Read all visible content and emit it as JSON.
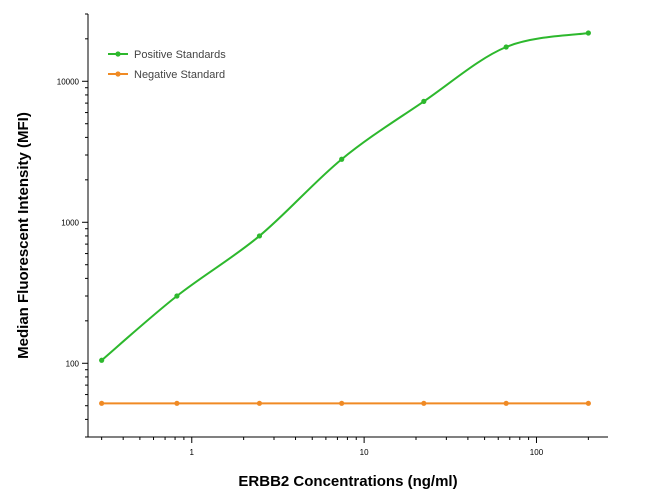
{
  "chart_data": {
    "type": "line",
    "title": "",
    "xlabel": "ERBB2 Concentrations (ng/ml)",
    "ylabel": "Median  Fluorescent Intensity  (MFI)",
    "x_scale": "log",
    "y_scale": "log",
    "xlim": [
      0.25,
      260
    ],
    "ylim": [
      30,
      30000
    ],
    "x_ticks": [
      {
        "value": 1,
        "label": "1"
      },
      {
        "value": 10,
        "label": "10"
      },
      {
        "value": 100,
        "label": "100"
      }
    ],
    "y_ticks": [
      {
        "value": 100,
        "label": "100"
      },
      {
        "value": 1000,
        "label": "1000"
      },
      {
        "value": 10000,
        "label": "10000"
      }
    ],
    "grid": false,
    "legend_position": "top-left",
    "series": [
      {
        "name": "Positive Standards",
        "color": "#2db82d",
        "x": [
          0.3,
          0.82,
          2.47,
          7.41,
          22.2,
          66.7,
          200
        ],
        "y": [
          105,
          300,
          800,
          2800,
          7200,
          17500,
          22000
        ]
      },
      {
        "name": "Negative Standard",
        "color": "#f08a24",
        "x": [
          0.3,
          0.82,
          2.47,
          7.41,
          22.2,
          66.7,
          200
        ],
        "y": [
          52,
          52,
          52,
          52,
          52,
          52,
          52
        ]
      }
    ]
  }
}
